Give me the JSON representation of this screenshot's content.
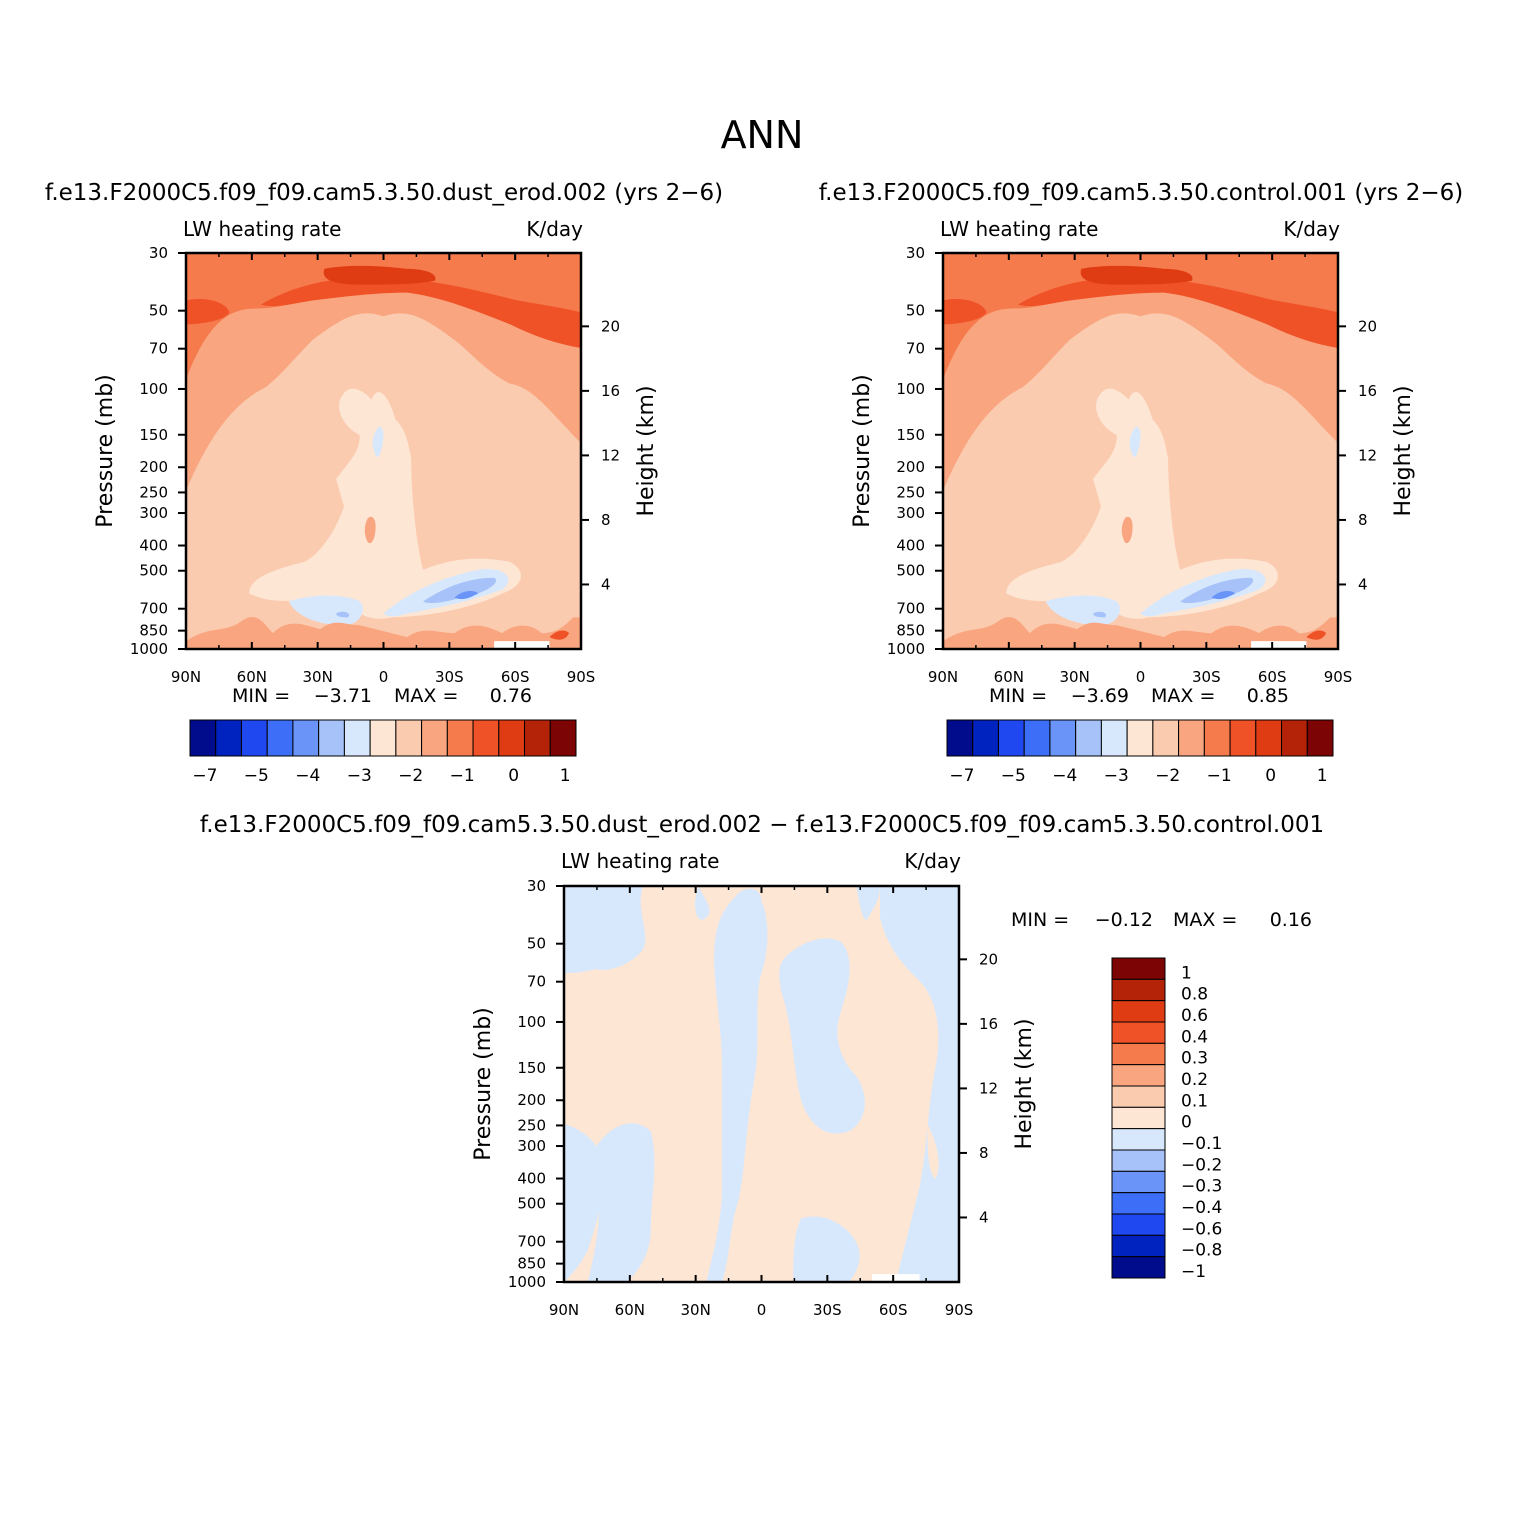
{
  "figure": {
    "title": "ANN"
  },
  "chart_data": [
    {
      "type": "heatmap",
      "title": "f.e13.F2000C5.f09_f09.cam5.3.50.dust_erod.002 (yrs 2−6)",
      "variable_label": "LW heating rate",
      "units_label": "K/day",
      "ylabel": "Pressure (mb)",
      "ylabel_right": "Height (km)",
      "x_ticks": [
        "90N",
        "60N",
        "30N",
        "0",
        "30S",
        "60S",
        "90S"
      ],
      "y_ticks": [
        "30",
        "50",
        "70",
        "100",
        "150",
        "200",
        "250",
        "300",
        "400",
        "500",
        "700",
        "850",
        "1000"
      ],
      "y_ticks_right": [
        "20",
        "16",
        "12",
        "8",
        "4"
      ],
      "min_label": "MIN =",
      "min_value": "−3.71",
      "max_label": "MAX =",
      "max_value": "0.76",
      "colorbar_orientation": "horizontal",
      "colorbar_labels": [
        "−7",
        "−5",
        "−4",
        "−3",
        "−2",
        "−1",
        "0",
        "1"
      ],
      "colorbar_colors": [
        "#000c8c",
        "#0022be",
        "#1f48f0",
        "#3c6ef8",
        "#6a94f8",
        "#a6c2f8",
        "#d8e8fc",
        "#fde6d4",
        "#fbcbb0",
        "#f9a680",
        "#f57a4c",
        "#f05228",
        "#e03c14",
        "#b42208",
        "#7c0404"
      ]
    },
    {
      "type": "heatmap",
      "title": "f.e13.F2000C5.f09_f09.cam5.3.50.control.001 (yrs 2−6)",
      "variable_label": "LW heating rate",
      "units_label": "K/day",
      "ylabel": "Pressure (mb)",
      "ylabel_right": "Height (km)",
      "x_ticks": [
        "90N",
        "60N",
        "30N",
        "0",
        "30S",
        "60S",
        "90S"
      ],
      "y_ticks": [
        "30",
        "50",
        "70",
        "100",
        "150",
        "200",
        "250",
        "300",
        "400",
        "500",
        "700",
        "850",
        "1000"
      ],
      "y_ticks_right": [
        "20",
        "16",
        "12",
        "8",
        "4"
      ],
      "min_label": "MIN =",
      "min_value": "−3.69",
      "max_label": "MAX =",
      "max_value": "0.85",
      "colorbar_orientation": "horizontal",
      "colorbar_labels": [
        "−7",
        "−5",
        "−4",
        "−3",
        "−2",
        "−1",
        "0",
        "1"
      ],
      "colorbar_colors": [
        "#000c8c",
        "#0022be",
        "#1f48f0",
        "#3c6ef8",
        "#6a94f8",
        "#a6c2f8",
        "#d8e8fc",
        "#fde6d4",
        "#fbcbb0",
        "#f9a680",
        "#f57a4c",
        "#f05228",
        "#e03c14",
        "#b42208",
        "#7c0404"
      ]
    },
    {
      "type": "heatmap",
      "title": "f.e13.F2000C5.f09_f09.cam5.3.50.dust_erod.002 − f.e13.F2000C5.f09_f09.cam5.3.50.control.001",
      "variable_label": "LW heating rate",
      "units_label": "K/day",
      "ylabel": "Pressure (mb)",
      "ylabel_right": "Height (km)",
      "x_ticks": [
        "90N",
        "60N",
        "30N",
        "0",
        "30S",
        "60S",
        "90S"
      ],
      "y_ticks": [
        "30",
        "50",
        "70",
        "100",
        "150",
        "200",
        "250",
        "300",
        "400",
        "500",
        "700",
        "850",
        "1000"
      ],
      "y_ticks_right": [
        "20",
        "16",
        "12",
        "8",
        "4"
      ],
      "min_label": "MIN =",
      "min_value": "−0.12",
      "max_label": "MAX =",
      "max_value": "0.16",
      "colorbar_orientation": "vertical",
      "colorbar_labels": [
        "1",
        "0.8",
        "0.6",
        "0.4",
        "0.3",
        "0.2",
        "0.1",
        "0",
        "−0.1",
        "−0.2",
        "−0.3",
        "−0.4",
        "−0.6",
        "−0.8",
        "−1"
      ],
      "colorbar_colors": [
        "#7c0404",
        "#b42208",
        "#e03c14",
        "#f05228",
        "#f57a4c",
        "#f9a680",
        "#fbcbb0",
        "#fde6d4",
        "#d8e8fc",
        "#a6c2f8",
        "#6a94f8",
        "#3c6ef8",
        "#1f48f0",
        "#0022be",
        "#000c8c"
      ]
    }
  ]
}
